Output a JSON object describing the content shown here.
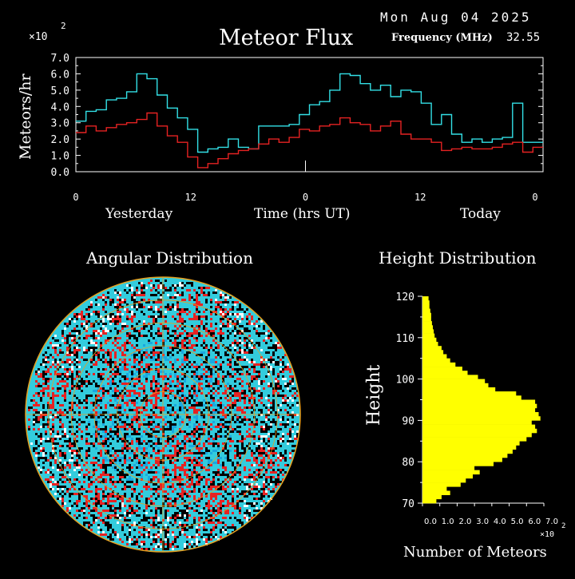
{
  "header": {
    "date": "Mon Aug 04 2025",
    "title": "Meteor Flux",
    "frequency_label": "Frequency (MHz)",
    "frequency_value": "32.55"
  },
  "colors": {
    "background": "#000000",
    "text": "#ffffff",
    "total_series": "#33e0e6",
    "subset_series": "#e62222",
    "grid": "#e6a020",
    "height_bars": "#ffff00"
  },
  "chart_data": [
    {
      "type": "line",
      "title": "Meteor Flux",
      "ylabel": "Meteors/hr",
      "multiplier_label": "×10",
      "multiplier_exponent": "2",
      "xlabel": "Time (hrs UT)",
      "day_labels": [
        "Yesterday",
        "Today"
      ],
      "xticks": [
        "0",
        "12",
        "0",
        "12",
        "0"
      ],
      "yticks": [
        "0.0",
        "1.0",
        "2.0",
        "3.0",
        "4.0",
        "5.0",
        "6.0",
        "7.0"
      ],
      "ylim": [
        0,
        7
      ],
      "xlim": [
        0,
        48
      ],
      "step": true,
      "series": [
        {
          "color": "#33e0e6",
          "values": [
            3.1,
            3.7,
            3.8,
            4.4,
            4.5,
            4.9,
            6.0,
            5.7,
            4.7,
            3.9,
            3.3,
            2.6,
            1.2,
            1.4,
            1.5,
            2.0,
            1.5,
            1.4,
            2.8,
            2.8,
            2.8,
            2.9,
            3.5,
            4.1,
            4.3,
            5.0,
            6.0,
            5.9,
            5.4,
            5.0,
            5.3,
            4.6,
            5.0,
            4.9,
            4.2,
            2.9,
            3.5,
            2.3,
            1.8,
            2.0,
            1.8,
            2.0,
            2.1,
            4.2,
            1.8,
            1.8
          ]
        },
        {
          "color": "#e62222",
          "values": [
            2.4,
            2.8,
            2.5,
            2.7,
            2.9,
            3.0,
            3.2,
            3.6,
            2.8,
            2.2,
            1.8,
            0.9,
            0.25,
            0.5,
            0.8,
            1.1,
            1.3,
            1.4,
            1.7,
            2.0,
            1.8,
            2.1,
            2.6,
            2.5,
            2.8,
            2.9,
            3.3,
            3.0,
            2.9,
            2.5,
            2.8,
            3.1,
            2.3,
            2.0,
            2.0,
            1.8,
            1.3,
            1.4,
            1.5,
            1.4,
            1.4,
            1.5,
            1.7,
            1.8,
            1.2,
            1.5
          ]
        }
      ]
    },
    {
      "type": "heatmap",
      "title": "Angular Distribution",
      "projection": "polar",
      "colors": [
        "#33ccdd",
        "#1aa8e0",
        "#e62222",
        "#000000",
        "#ffffff"
      ]
    },
    {
      "type": "bar",
      "orientation": "horizontal",
      "title": "Height Distribution",
      "ylabel": "Height",
      "xlabel": "Number of Meteors",
      "xticks": [
        "0.0",
        "1.0",
        "2.0",
        "3.0",
        "4.0",
        "5.0",
        "6.0",
        "7.0"
      ],
      "multiplier_label": "×10",
      "multiplier_exponent": "2",
      "yticks": [
        "70",
        "80",
        "90",
        "100",
        "110",
        "120"
      ],
      "ylim": [
        70,
        120
      ],
      "xlim": [
        0,
        7
      ],
      "heights": [
        70,
        71,
        72,
        73,
        74,
        75,
        76,
        77,
        78,
        79,
        80,
        81,
        82,
        83,
        84,
        85,
        86,
        87,
        88,
        89,
        90,
        91,
        92,
        93,
        94,
        95,
        96,
        97,
        98,
        99,
        100,
        101,
        102,
        103,
        104,
        105,
        106,
        107,
        108,
        109,
        110,
        111,
        112,
        113,
        114,
        115,
        116,
        117,
        118,
        119
      ],
      "values": [
        0.8,
        1.1,
        1.6,
        1.4,
        2.2,
        2.5,
        2.9,
        3.3,
        3.0,
        4.1,
        4.6,
        4.9,
        5.2,
        5.4,
        5.6,
        6.0,
        6.3,
        6.6,
        6.5,
        6.3,
        6.8,
        6.7,
        6.5,
        6.6,
        6.5,
        5.7,
        5.4,
        4.2,
        3.8,
        3.6,
        3.2,
        2.6,
        2.3,
        1.9,
        1.6,
        1.4,
        1.2,
        1.1,
        0.9,
        0.8,
        0.7,
        0.65,
        0.6,
        0.55,
        0.5,
        0.5,
        0.45,
        0.4,
        0.4,
        0.35
      ]
    }
  ]
}
